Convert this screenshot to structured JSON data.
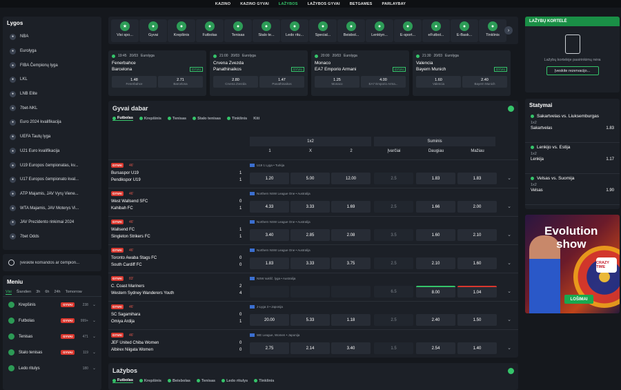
{
  "topnav": [
    "KAZINO",
    "KAZINO GYVAI",
    "LAŽYBOS",
    "LAŽYBOS GYVAI",
    "BETGAMES",
    "PARLAYBAY"
  ],
  "lygos": {
    "title": "Lygos",
    "items": [
      "NBA",
      "Eurolyga",
      "FIBA Čempionų lyga",
      "LKL",
      "LNB Elite",
      "7bet-NKL",
      "Euro 2024 kvalifikacija",
      "UEFA Tautų lyga",
      "U21 Euro kvalifikacija",
      "U19 Europos čempionatas, kv...",
      "U17 Europos čempionato kval...",
      "ATP Majamis, JAV Vyrų Viene...",
      "WTA Majamis, JAV Moterys Vi...",
      "JAV Prezidento rinkimai 2024",
      "7bet Odds"
    ]
  },
  "search": {
    "text": "Įveskite komandos ar čempion..."
  },
  "meniu": {
    "title": "Meniu",
    "tabs": [
      "Visi",
      "Šiandien",
      "3h",
      "6h",
      "24h",
      "Tomorrow"
    ],
    "items": [
      {
        "name": "Krepšinis",
        "badge": "GYVAI",
        "count": "238"
      },
      {
        "name": "Futbolas",
        "badge": "GYVAI",
        "count": "999+"
      },
      {
        "name": "Tenisas",
        "badge": "GYVAI",
        "count": "471"
      },
      {
        "name": "Stalo tenisas",
        "badge": "GYVAI",
        "count": "119"
      },
      {
        "name": "Ledo ritulys",
        "badge": "",
        "count": "180"
      }
    ]
  },
  "sports": [
    "Visi spo...",
    "Gyvai",
    "Krepšinis",
    "Futbolas",
    "Tenisas",
    "Stalo te...",
    "Ledo ritu...",
    "Special...",
    "Beisbol...",
    "Lenktyn...",
    "E-sport...",
    "eFutbol...",
    "E-Bask...",
    "Tinklinis"
  ],
  "featured": [
    {
      "time": "19:45",
      "date": "20/03",
      "league": "Eurolyga",
      "t1": "Fenerbahce",
      "t2": "Barcelona",
      "badge": "GYVAI",
      "o1": "1.48",
      "l1": "Fenerbahce",
      "o2": "2.71",
      "l2": "Barcelona"
    },
    {
      "time": "21:00",
      "date": "20/03",
      "league": "Eurolyga",
      "t1": "Crvena Zvezda",
      "t2": "Panathinaikos",
      "badge": "GYVAI",
      "o1": "2.80",
      "l1": "Crvena Zvezda",
      "o2": "1.47",
      "l2": "Panathinaikos"
    },
    {
      "time": "20:00",
      "date": "20/03",
      "league": "Eurolyga",
      "t1": "Monaco",
      "t2": "EA7 Emporio Armani",
      "badge": "GYVAI",
      "o1": "1.25",
      "l1": "Monaco",
      "o2": "4.00",
      "l2": "EA7 Emporio Arma..."
    },
    {
      "time": "21:30",
      "date": "20/03",
      "league": "Eurolyga",
      "t1": "Valencia",
      "t2": "Bayern Munich",
      "badge": "GYVAI",
      "o1": "1.60",
      "l1": "Valencia",
      "o2": "2.40",
      "l2": "Bayern Munich"
    }
  ],
  "live": {
    "title": "Gyvai dabar",
    "filters": [
      "Futbolas",
      "Krepšinis",
      "Tenisas",
      "Stalo tenisas",
      "Tinklinis",
      "Kiti"
    ],
    "hdr": {
      "m1": "1x2",
      "m2": "Suminis",
      "c1": "1",
      "cx": "X",
      "c2": "2",
      "cv": "Įvarčiai",
      "co": "Daugiau",
      "cu": "Mažiau"
    },
    "matches": [
      {
        "live": "GYVAI",
        "min": "46'",
        "league": "U19 1 Lyga • Turkija",
        "t1": "Bursaspor U19",
        "t2": "Pendikspor U19",
        "s1": "1",
        "s2": "1",
        "o1": "1.20",
        "ox": "5.00",
        "o2": "12.00",
        "g": "2.5",
        "ov": "1.83",
        "un": "1.83"
      },
      {
        "live": "GYVAI",
        "min": "46'",
        "league": "Northern NSW League One • Australija",
        "t1": "West Wallsend SFC",
        "t2": "Kahibah FC",
        "s1": "0",
        "s2": "1",
        "o1": "4.33",
        "ox": "3.33",
        "o2": "1.69",
        "g": "2.5",
        "ov": "1.66",
        "un": "2.00"
      },
      {
        "live": "GYVAI",
        "min": "46'",
        "league": "Northern NSW League One • Australija",
        "t1": "Wallsend FC",
        "t2": "Singleton Strikers FC",
        "s1": "1",
        "s2": "1",
        "o1": "3.40",
        "ox": "2.85",
        "o2": "2.08",
        "g": "3.5",
        "ov": "1.60",
        "un": "2.10"
      },
      {
        "live": "GYVAI",
        "min": "46'",
        "league": "Northern NSW League One • Australija",
        "t1": "Toronto Awaba Stags FC",
        "t2": "South Cardiff FC",
        "s1": "0",
        "s2": "0",
        "o1": "1.83",
        "ox": "3.33",
        "o2": "3.75",
        "g": "2.5",
        "ov": "2.10",
        "un": "1.60"
      },
      {
        "live": "GYVAI",
        "min": "83'",
        "league": "NSW sukšč. lyga • Australija",
        "t1": "C. Coast Mariners",
        "t2": "Western Sydney Wanderers Youth",
        "s1": "2",
        "s2": "4",
        "o1": "",
        "ox": "",
        "o2": "",
        "g": "6.5",
        "ov": "8.00",
        "un": "1.04"
      },
      {
        "live": "GYVAI",
        "min": "46'",
        "league": "J-Lyga 3 • Japonija",
        "t1": "SC Sagamihara",
        "t2": "Omiya Ardija",
        "s1": "0",
        "s2": "1",
        "o1": "20.00",
        "ox": "5.33",
        "o2": "1.18",
        "g": "2.5",
        "ov": "2.40",
        "un": "1.50"
      },
      {
        "live": "GYVAI",
        "min": "46'",
        "league": "WE League, Women • Japonija",
        "t1": "JEF United Chiba Women",
        "t2": "Albirex Niigata Women",
        "s1": "0",
        "s2": "0",
        "o1": "2.75",
        "ox": "2.14",
        "o2": "3.40",
        "g": "1.5",
        "ov": "2.54",
        "un": "1.40"
      }
    ]
  },
  "lazybos": {
    "title": "Lažybos",
    "filters": [
      "Futbolas",
      "Krepšinis",
      "Beisbolas",
      "Tenisas",
      "Ledo ritulys",
      "Tinklinis"
    ]
  },
  "betslip": {
    "title": "LAŽYBŲ KORTELĖ",
    "empty": "Lažybų kortelėje pasirinkimų nėra",
    "button": "Įveskite rezervacijo..."
  },
  "statymai": {
    "title": "Statymai",
    "items": [
      {
        "match": "Sakartvelas vs. Liuksemburgas",
        "market": "1x2",
        "pick": "Sakartvelas",
        "odd": "1.83"
      },
      {
        "match": "Lenkijo vs. Estija",
        "market": "1x2",
        "pick": "Lenkija",
        "odd": "1.17"
      },
      {
        "match": "Velsas vs. Suomija",
        "market": "1x2",
        "pick": "Velsas",
        "odd": "1.90"
      }
    ]
  },
  "promo": {
    "title1": "Evolution",
    "title2": "show",
    "logo": "CRAZY TIME",
    "button": "LOŠIMAI"
  },
  "colors": {
    "accent": "#35c46a",
    "live": "#d9372e",
    "bg": "#15181d",
    "panel": "#1c2027"
  }
}
